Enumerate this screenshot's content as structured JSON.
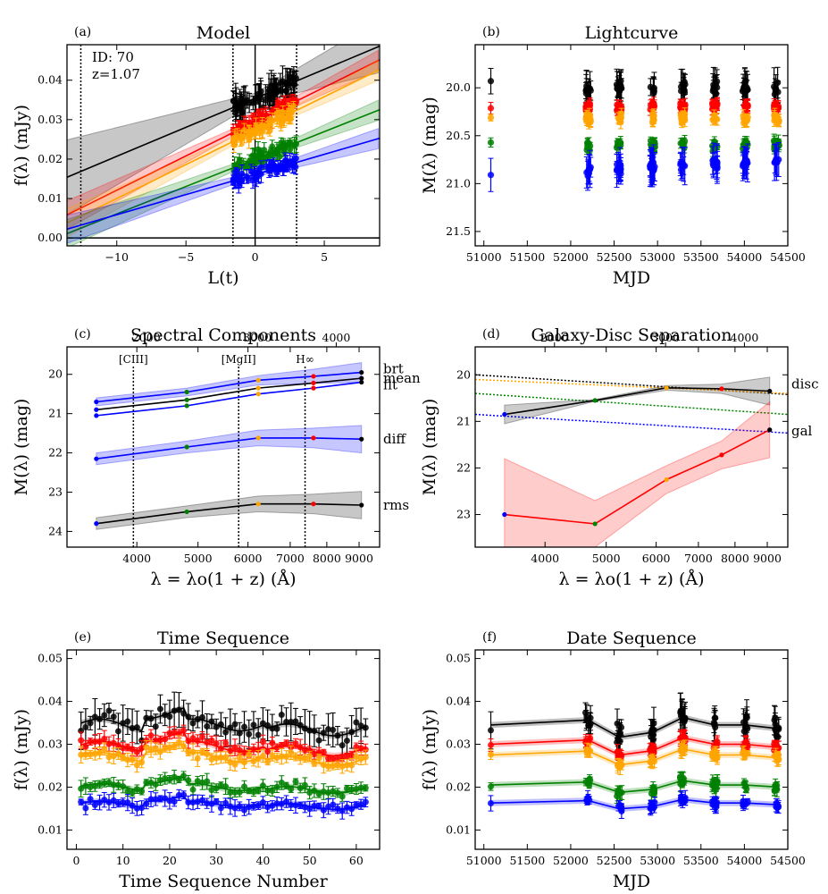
{
  "colors": {
    "u": "#0000ff",
    "g": "#008000",
    "r": "#ff0000",
    "i": "#ffa500",
    "z": "#000000",
    "axis": "#000000"
  },
  "chart_data": [
    {
      "id": "a",
      "type": "scatter",
      "panel_letter": "(a)",
      "title": "Model",
      "xlabel": "L(t)",
      "ylabel": "f(λ) (mJy)",
      "xlim": [
        -13.6,
        9.0
      ],
      "ylim": [
        -0.002,
        0.049
      ],
      "xticks": [
        -10,
        -5,
        0,
        5
      ],
      "xtick_labels": [
        "−10",
        "−5",
        "0",
        "5"
      ],
      "yticks": [
        0.0,
        0.01,
        0.02,
        0.03,
        0.04
      ],
      "ytick_labels": [
        "0.00",
        "0.01",
        "0.02",
        "0.03",
        "0.04"
      ],
      "annotations": [
        "ID: 70",
        "z=1.07"
      ],
      "vlines": [
        -12.6,
        -1.6,
        0.0,
        3.0
      ],
      "lines": [
        {
          "band": "z",
          "intercept": 0.0354,
          "slope": 0.00147
        },
        {
          "band": "r",
          "intercept": 0.0295,
          "slope": 0.00174
        },
        {
          "band": "i",
          "intercept": 0.0272,
          "slope": 0.00172
        },
        {
          "band": "g",
          "intercept": 0.02,
          "slope": 0.00139
        },
        {
          "band": "u",
          "intercept": 0.0161,
          "slope": 0.00102
        }
      ]
    },
    {
      "id": "b",
      "type": "scatter",
      "panel_letter": "(b)",
      "title": "Lightcurve",
      "xlabel": "MJD",
      "ylabel": "M(λ) (mag)",
      "xlim": [
        50900,
        54500
      ],
      "ylim": [
        21.65,
        19.55
      ],
      "xticks": [
        51000,
        51500,
        52000,
        52500,
        53000,
        53500,
        54000,
        54500
      ],
      "xtick_labels": [
        "51000",
        "51500",
        "52000",
        "52500",
        "53000",
        "53500",
        "54000",
        "54500"
      ],
      "yticks": [
        20.0,
        20.5,
        21.0,
        21.5
      ],
      "ytick_labels": [
        "20.0",
        "20.5",
        "21.0",
        "21.5"
      ],
      "epochs": [
        51080,
        52200,
        52560,
        52940,
        53290,
        53660,
        54010,
        54370
      ],
      "band_mags": {
        "u": 20.88,
        "g": 20.6,
        "i": 20.32,
        "r": 20.2,
        "z": 20.0
      }
    },
    {
      "id": "c",
      "type": "line",
      "panel_letter": "(c)",
      "title": "Spectral Components",
      "xlabel": "λ = λo(1 + z) (Å)",
      "ylabel": "M(λ) (mag)",
      "xlim": [
        3100,
        9700
      ],
      "ylim": [
        24.4,
        19.3
      ],
      "log_x": true,
      "xticks": [
        4000,
        5000,
        6000,
        7000,
        8000,
        9000
      ],
      "xtick_labels": [
        "4000",
        "5000",
        "6000",
        "7000",
        "8000",
        "9000"
      ],
      "top_ticks": [
        2000,
        3000,
        4000
      ],
      "top_tick_labels": [
        "2000",
        "3000",
        "4000"
      ],
      "yticks": [
        20,
        21,
        22,
        23,
        24
      ],
      "ytick_labels": [
        "20",
        "21",
        "22",
        "23",
        "24"
      ],
      "lines_marks": [
        {
          "label": "[CIII]",
          "x": 3950
        },
        {
          "label": "[MgII]",
          "x": 5800
        },
        {
          "label": "H∞",
          "x": 7390
        }
      ],
      "x": [
        3450,
        4800,
        6230,
        7620,
        9080
      ],
      "series": [
        {
          "name": "brt",
          "color": "u",
          "values": [
            20.7,
            20.45,
            20.15,
            20.05,
            19.95
          ]
        },
        {
          "name": "mean",
          "color": "z",
          "values": [
            20.9,
            20.65,
            20.35,
            20.22,
            20.1
          ]
        },
        {
          "name": "flt",
          "color": "u",
          "values": [
            21.05,
            20.8,
            20.5,
            20.35,
            20.2
          ]
        },
        {
          "name": "diff",
          "color": "u",
          "values": [
            22.15,
            21.85,
            21.62,
            21.62,
            21.65
          ]
        },
        {
          "name": "rms",
          "color": "z",
          "values": [
            23.8,
            23.5,
            23.3,
            23.3,
            23.33
          ]
        }
      ]
    },
    {
      "id": "d",
      "type": "line",
      "panel_letter": "(d)",
      "title": "Galaxy-Disc Separation",
      "xlabel": "λ = λo(1 + z) (Å)",
      "ylabel": "M(λ) (mag)",
      "xlim": [
        3100,
        9700
      ],
      "ylim": [
        23.7,
        19.4
      ],
      "log_x": true,
      "xticks": [
        4000,
        5000,
        6000,
        7000,
        8000,
        9000
      ],
      "xtick_labels": [
        "4000",
        "5000",
        "6000",
        "7000",
        "8000",
        "9000"
      ],
      "top_ticks": [
        2000,
        3000,
        4000
      ],
      "top_tick_labels": [
        "2000",
        "3000",
        "4000"
      ],
      "yticks": [
        20,
        21,
        22,
        23
      ],
      "ytick_labels": [
        "20",
        "21",
        "22",
        "23"
      ],
      "x": [
        3450,
        4800,
        6230,
        7620,
        9080
      ],
      "series": [
        {
          "name": "disc",
          "color": "z",
          "values": [
            20.85,
            20.55,
            20.28,
            20.3,
            20.35
          ]
        },
        {
          "name": "gal",
          "color": "r",
          "values": [
            23.0,
            23.2,
            22.25,
            21.72,
            21.18
          ]
        }
      ],
      "powerlaws": [
        {
          "band": "z",
          "start": 20.0,
          "end": 20.42
        },
        {
          "band": "i",
          "start": 20.1,
          "end": 20.4
        },
        {
          "band": "g",
          "start": 20.4,
          "end": 20.85
        },
        {
          "band": "u",
          "start": 20.85,
          "end": 21.25
        }
      ]
    },
    {
      "id": "e",
      "type": "scatter",
      "panel_letter": "(e)",
      "title": "Time Sequence",
      "xlabel": "Time Sequence Number",
      "ylabel": "f(λ) (mJy)",
      "xlim": [
        -2,
        65
      ],
      "ylim": [
        0.0055,
        0.052
      ],
      "xticks": [
        0,
        10,
        20,
        30,
        40,
        50,
        60
      ],
      "xtick_labels": [
        "0",
        "10",
        "20",
        "30",
        "40",
        "50",
        "60"
      ],
      "yticks": [
        0.01,
        0.02,
        0.03,
        0.04,
        0.05
      ],
      "ytick_labels": [
        "0.01",
        "0.02",
        "0.03",
        "0.04",
        "0.05"
      ],
      "n_points": 62,
      "band_means": {
        "z": 0.0345,
        "r": 0.0295,
        "i": 0.027,
        "g": 0.02,
        "u": 0.016
      }
    },
    {
      "id": "f",
      "type": "scatter",
      "panel_letter": "(f)",
      "title": "Date Sequence",
      "xlabel": "MJD",
      "ylabel": "f(λ) (mJy)",
      "xlim": [
        50900,
        54500
      ],
      "ylim": [
        0.0055,
        0.052
      ],
      "xticks": [
        51000,
        51500,
        52000,
        52500,
        53000,
        53500,
        54000,
        54500
      ],
      "xtick_labels": [
        "51000",
        "51500",
        "52000",
        "52500",
        "53000",
        "53500",
        "54000",
        "54500"
      ],
      "yticks": [
        0.01,
        0.02,
        0.03,
        0.04,
        0.05
      ],
      "ytick_labels": [
        "0.01",
        "0.02",
        "0.03",
        "0.04",
        "0.05"
      ],
      "epochs": [
        51080,
        52200,
        52560,
        52940,
        53290,
        53660,
        54010,
        54370
      ],
      "band_means": {
        "z": 0.0345,
        "r": 0.03,
        "i": 0.0275,
        "g": 0.0205,
        "u": 0.0163
      }
    }
  ]
}
